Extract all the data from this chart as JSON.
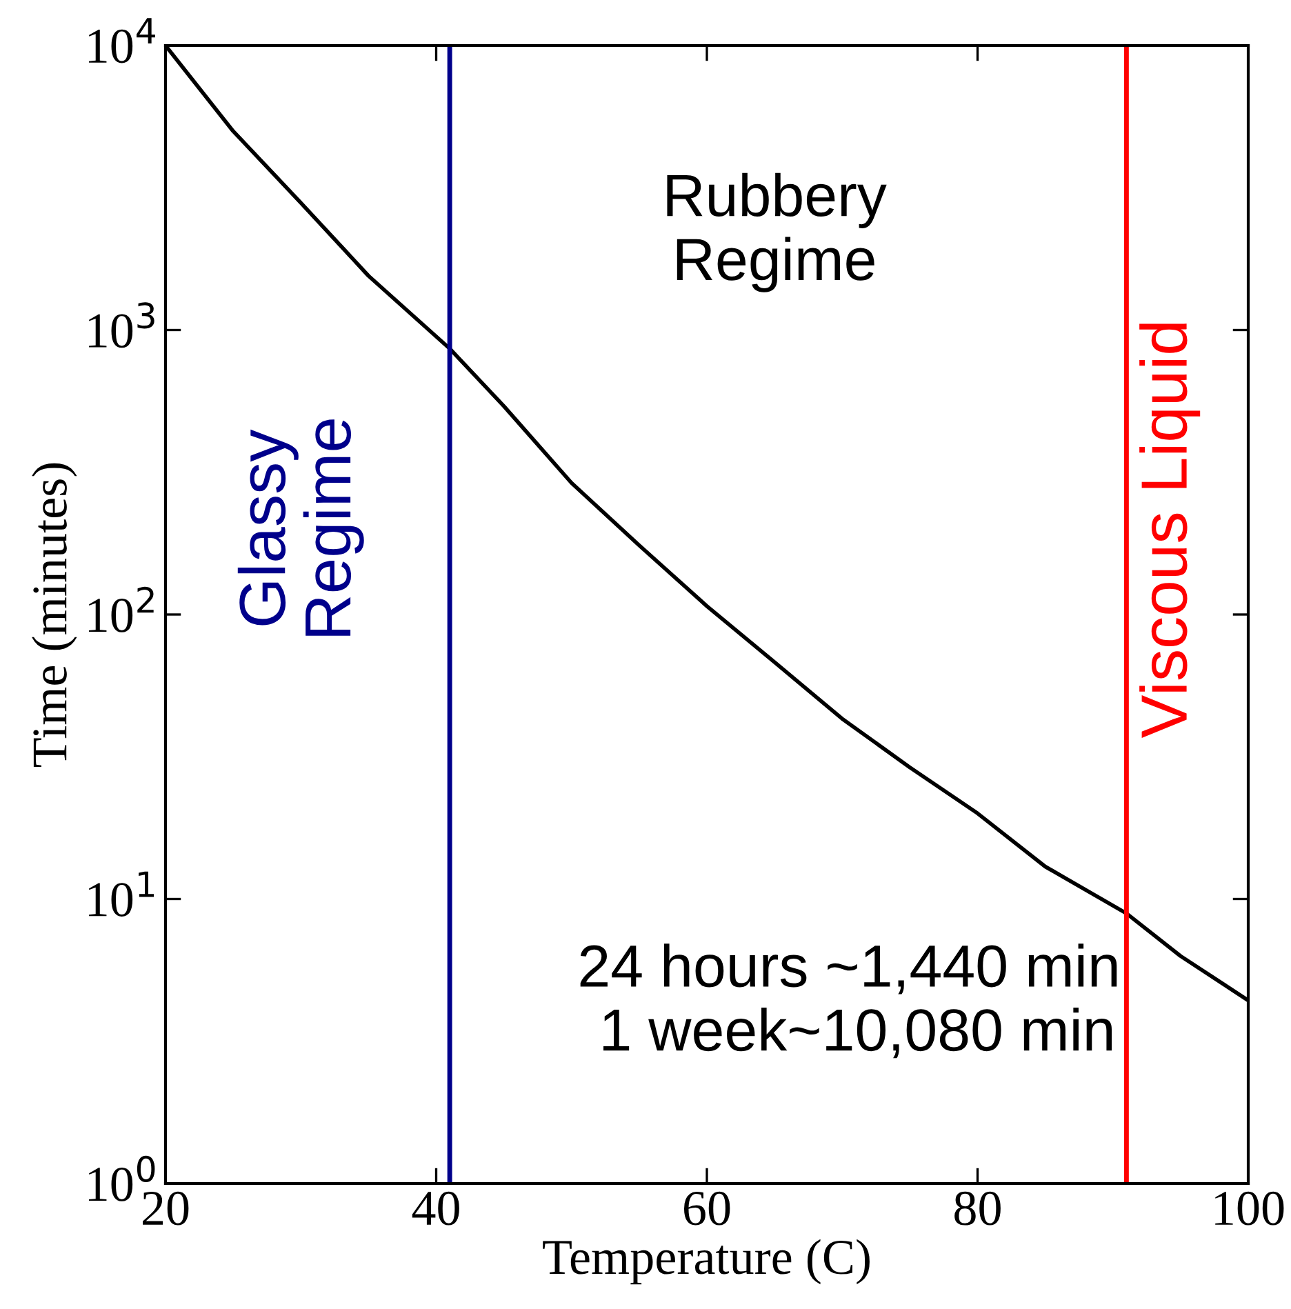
{
  "chart_data": {
    "type": "line",
    "xlabel": "Temperature (C)",
    "ylabel": "Time (minutes)",
    "log": "y",
    "x": [
      20,
      25,
      30,
      35,
      41,
      45,
      50,
      55,
      60,
      65,
      70,
      75,
      80,
      85,
      91,
      95,
      100
    ],
    "series": [
      {
        "color": "#000000",
        "values": [
          10000,
          5000,
          2800,
          1550,
          860,
          540,
          290,
          175,
          107,
          68,
          43,
          29,
          20,
          13,
          8.9,
          6.3,
          4.4
        ]
      }
    ],
    "xlim": [
      20,
      100
    ],
    "xticks": [
      20,
      40,
      60,
      80,
      100
    ],
    "ylim": [
      1,
      10000
    ],
    "yticks": [
      {
        "value": 1,
        "label": "10$^{0}$"
      },
      {
        "value": 10,
        "label": "10$^{1}$"
      },
      {
        "value": 100,
        "label": "10$^{2}$"
      },
      {
        "value": 1000,
        "label": "10$^{3}$"
      },
      {
        "value": 10000,
        "label": "10$^{4}$"
      }
    ],
    "ref_lines": [
      {
        "axis": "x",
        "value": 41,
        "label": "Glassy\nRegime",
        "color": "#00008b"
      },
      {
        "axis": "x",
        "value": 91,
        "label": "Viscous Liquid",
        "color": "#ff0000"
      }
    ],
    "annotations": [
      "Rubbery\nRegime",
      "24 hours ~1,440 min\n 1 week~10,080 min"
    ],
    "grid": false,
    "legend": false
  }
}
